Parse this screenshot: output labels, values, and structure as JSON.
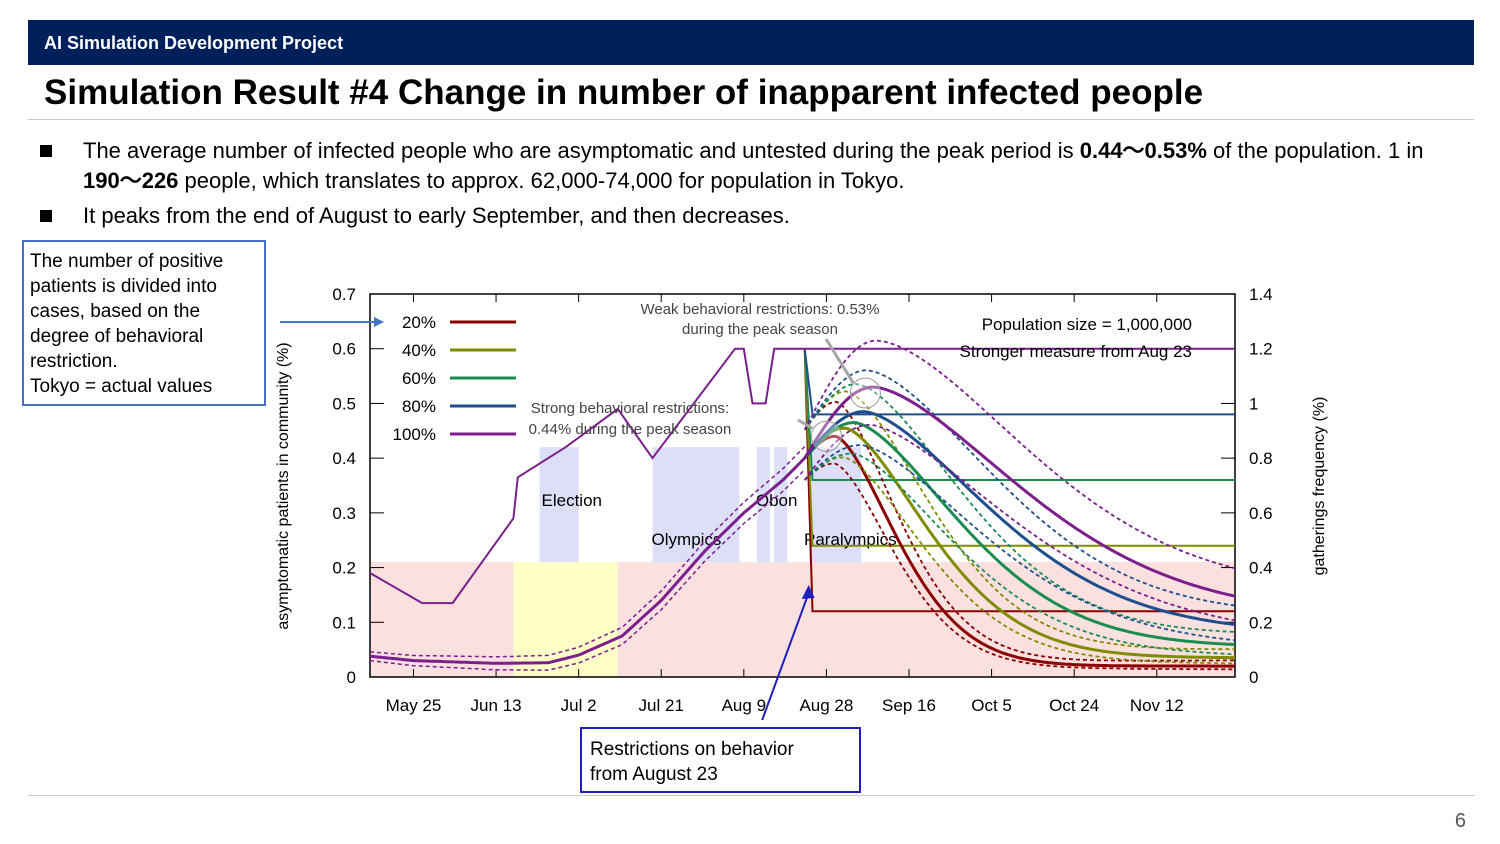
{
  "header": {
    "project": "AI Simulation Development Project",
    "title": "Simulation Result #4 Change in number of inapparent infected people"
  },
  "bullets": [
    {
      "p1": "The average number of infected people who are asymptomatic and untested during the peak period is ",
      "b1": "0.44～0.53%",
      "p2": " of the population. 1 in ",
      "b2": "190～226",
      "p3": " people, which translates to approx. 62,000-74,000 for population in Tokyo."
    },
    {
      "text": "It peaks from the end of August to early September, and then decreases."
    }
  ],
  "notes": {
    "left": [
      "The number of positive",
      "patients is divided into",
      "cases, based on the",
      "degree of behavioral",
      "restriction.",
      "Tokyo = actual values"
    ],
    "bottom": [
      "Restrictions on behavior",
      "from August 23"
    ]
  },
  "page_number": "6",
  "colors": {
    "header_bg": "#00205b",
    "s20": "#8b0000",
    "s40": "#7f8c00",
    "s60": "#1a8c50",
    "s80": "#1f4e8c",
    "s100": "#7b1f8c",
    "restriction_band": "#fbe0e0",
    "election_band": "#ffffc8",
    "event_band": "#dcdff7"
  },
  "chart_data": {
    "type": "line",
    "xlabel": "",
    "ylabel": "asymptomatic patients in community (%)",
    "ylabel_right": "gatherings frequency (%)",
    "x_ticks": [
      "May 25",
      "Jun 13",
      "Jul 2",
      "Jul 21",
      "Aug 9",
      "Aug 28",
      "Sep 16",
      "Oct 5",
      "Oct 24",
      "Nov 12"
    ],
    "x_start": "May 15",
    "x_end": "Nov 30",
    "ylim": [
      0,
      0.7
    ],
    "y_ticks": [
      "0",
      "0.1",
      "0.2",
      "0.3",
      "0.4",
      "0.5",
      "0.6",
      "0.7"
    ],
    "ylim_right": [
      0,
      1.4
    ],
    "y2_ticks": [
      "0",
      "0.2",
      "0.4",
      "0.6",
      "0.8",
      "1",
      "1.2",
      "1.4"
    ],
    "annotations": {
      "weak": [
        "Weak behavioral restrictions: 0.53%",
        "during the peak season"
      ],
      "strong": [
        "Strong behavioral restrictions:",
        "0.44% during the peak season"
      ],
      "population": "Population size = 1,000,000",
      "measure": "Stronger measure from Aug 23"
    },
    "events": {
      "election": "Election",
      "olympics": "Olympics",
      "obon": "Obon",
      "paralympics": "Paralympics"
    },
    "legend": [
      "20%",
      "40%",
      "60%",
      "80%",
      "100%"
    ],
    "series": [
      {
        "name": "20%",
        "gathering_after": 0.24,
        "peak": 0.44,
        "tail_end": 0.02
      },
      {
        "name": "40%",
        "gathering_after": 0.48,
        "peak": 0.455,
        "tail_end": 0.035
      },
      {
        "name": "60%",
        "gathering_after": 0.72,
        "peak": 0.465,
        "tail_end": 0.055
      },
      {
        "name": "80%",
        "gathering_after": 0.96,
        "peak": 0.485,
        "tail_end": 0.08
      },
      {
        "name": "100%",
        "gathering_after": 1.2,
        "peak": 0.53,
        "tail_end": 0.11
      }
    ],
    "gathering_frequency_tokyo": [
      {
        "x": "May 15",
        "y": 0.38
      },
      {
        "x": "May 27",
        "y": 0.27
      },
      {
        "x": "Jun 3",
        "y": 0.27
      },
      {
        "x": "Jun 17",
        "y": 0.58
      },
      {
        "x": "Jun 18",
        "y": 0.73
      },
      {
        "x": "Jun 29",
        "y": 0.84
      },
      {
        "x": "Jul 11",
        "y": 0.98
      },
      {
        "x": "Jul 19",
        "y": 0.8
      },
      {
        "x": "Aug 7",
        "y": 1.2
      },
      {
        "x": "Aug 9",
        "y": 1.2
      },
      {
        "x": "Aug 11",
        "y": 1.0
      },
      {
        "x": "Aug 14",
        "y": 1.0
      },
      {
        "x": "Aug 16",
        "y": 1.2
      },
      {
        "x": "Aug 23",
        "y": 1.2
      }
    ],
    "infections_tokyo": [
      {
        "x": "May 15",
        "y": 0.038
      },
      {
        "x": "May 25",
        "y": 0.03
      },
      {
        "x": "Jun 13",
        "y": 0.025
      },
      {
        "x": "Jun 25",
        "y": 0.026
      },
      {
        "x": "Jul 2",
        "y": 0.04
      },
      {
        "x": "Jul 12",
        "y": 0.075
      },
      {
        "x": "Jul 21",
        "y": 0.14
      },
      {
        "x": "Jul 31",
        "y": 0.23
      },
      {
        "x": "Aug 9",
        "y": 0.3
      },
      {
        "x": "Aug 18",
        "y": 0.36
      },
      {
        "x": "Aug 23",
        "y": 0.4
      }
    ]
  }
}
